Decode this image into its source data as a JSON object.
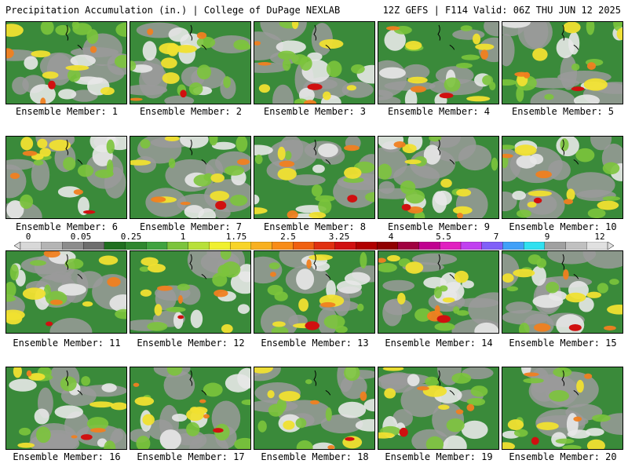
{
  "header": {
    "left": "Precipitation Accumulation (in.) | College of DuPage NEXLAB",
    "right": "12Z GEFS | F114 Valid: 06Z THU JUN 12 2025"
  },
  "panels": [
    {
      "label": "Ensemble Member: 1"
    },
    {
      "label": "Ensemble Member: 2"
    },
    {
      "label": "Ensemble Member: 3"
    },
    {
      "label": "Ensemble Member: 4"
    },
    {
      "label": "Ensemble Member: 5"
    },
    {
      "label": "Ensemble Member: 6"
    },
    {
      "label": "Ensemble Member: 7"
    },
    {
      "label": "Ensemble Member: 8"
    },
    {
      "label": "Ensemble Member: 9"
    },
    {
      "label": "Ensemble Member: 10"
    },
    {
      "label": "Ensemble Member: 11"
    },
    {
      "label": "Ensemble Member: 12"
    },
    {
      "label": "Ensemble Member: 13"
    },
    {
      "label": "Ensemble Member: 14"
    },
    {
      "label": "Ensemble Member: 15"
    },
    {
      "label": "Ensemble Member: 16"
    },
    {
      "label": "Ensemble Member: 17"
    },
    {
      "label": "Ensemble Member: 18"
    },
    {
      "label": "Ensemble Member: 19"
    },
    {
      "label": "Ensemble Member: 20"
    }
  ],
  "colorbar": {
    "ticks": [
      "0",
      "0.05",
      "0.25",
      "1",
      "1.75",
      "2.5",
      "3.25",
      "4",
      "5.5",
      "7",
      "9",
      "12"
    ],
    "colors": [
      "#d8d8d8",
      "#b4b4b4",
      "#8c8c8c",
      "#6e6e6e",
      "#1f6f1f",
      "#2f872f",
      "#3fa33f",
      "#7cc43c",
      "#b8e03a",
      "#f0f030",
      "#f8d428",
      "#f8b020",
      "#f88c18",
      "#f06010",
      "#e03010",
      "#d01010",
      "#b00000",
      "#900000",
      "#a00040",
      "#c00090",
      "#e020c0",
      "#c040f0",
      "#8060f8",
      "#40a0f8",
      "#30e0f0",
      "#a0a0a0",
      "#c0c0c0",
      "#e0e0e0"
    ]
  }
}
